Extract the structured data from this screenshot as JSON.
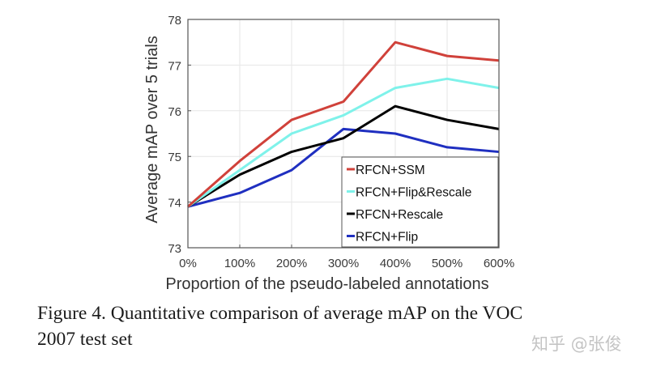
{
  "chart_data": {
    "type": "line",
    "title": "",
    "xlabel": "Proportion of the pseudo-labeled annotations",
    "ylabel": "Average mAP over 5 trials",
    "categories": [
      "0%",
      "100%",
      "200%",
      "300%",
      "400%",
      "500%",
      "600%"
    ],
    "ylim": [
      73,
      78
    ],
    "yticks": [
      "73",
      "74",
      "75",
      "76",
      "77",
      "78"
    ],
    "grid": true,
    "legend_position": "bottom-right",
    "series": [
      {
        "name": "RFCN+SSM",
        "color": "#d0413a",
        "values": [
          73.9,
          74.9,
          75.8,
          76.2,
          77.5,
          77.2,
          77.1
        ]
      },
      {
        "name": "RFCN+Flip&Rescale",
        "color": "#7ff2ea",
        "values": [
          73.9,
          74.7,
          75.5,
          75.9,
          76.5,
          76.7,
          76.5
        ]
      },
      {
        "name": "RFCN+Rescale",
        "color": "#000000",
        "values": [
          73.9,
          74.6,
          75.1,
          75.4,
          76.1,
          75.8,
          75.6
        ]
      },
      {
        "name": "RFCN+Flip",
        "color": "#1f2fc0",
        "values": [
          73.9,
          74.2,
          74.7,
          75.6,
          75.5,
          75.2,
          75.1
        ]
      }
    ]
  },
  "caption": {
    "line1": "Figure 4. Quantitative comparison of average mAP on the VOC",
    "line2": "2007 test set"
  },
  "watermark": "知乎 @张俊"
}
